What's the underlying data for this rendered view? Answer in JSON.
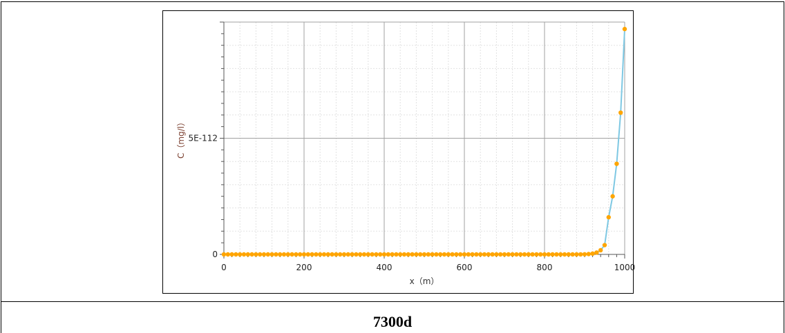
{
  "caption": "7300d",
  "chart_data": {
    "type": "line",
    "xlabel": "x（m）",
    "ylabel": "C（mg/l）",
    "xlim": [
      0,
      1000
    ],
    "ylim": [
      0,
      1e-111
    ],
    "x_ticks": [
      "0",
      "200",
      "400",
      "600",
      "800",
      "1000"
    ],
    "y_ticks": [
      "0",
      "5E-112"
    ],
    "grid": true,
    "series": [
      {
        "line_color": "#7ec8e3",
        "marker_color": "#ffa500",
        "x": [
          0,
          10,
          20,
          30,
          40,
          50,
          60,
          70,
          80,
          90,
          100,
          110,
          120,
          130,
          140,
          150,
          160,
          170,
          180,
          190,
          200,
          210,
          220,
          230,
          240,
          250,
          260,
          270,
          280,
          290,
          300,
          310,
          320,
          330,
          340,
          350,
          360,
          370,
          380,
          390,
          400,
          410,
          420,
          430,
          440,
          450,
          460,
          470,
          480,
          490,
          500,
          510,
          520,
          530,
          540,
          550,
          560,
          570,
          580,
          590,
          600,
          610,
          620,
          630,
          640,
          650,
          660,
          670,
          680,
          690,
          700,
          710,
          720,
          730,
          740,
          750,
          760,
          770,
          780,
          790,
          800,
          810,
          820,
          830,
          840,
          850,
          860,
          870,
          880,
          890,
          900,
          910,
          920,
          930,
          940,
          950,
          960,
          970,
          980,
          990,
          1000
        ],
        "y": [
          0,
          0,
          0,
          0,
          0,
          0,
          0,
          0,
          0,
          0,
          0,
          0,
          0,
          0,
          0,
          0,
          0,
          0,
          0,
          0,
          0,
          0,
          0,
          0,
          0,
          0,
          0,
          0,
          0,
          0,
          0,
          0,
          0,
          0,
          0,
          0,
          0,
          0,
          0,
          0,
          0,
          0,
          0,
          0,
          0,
          0,
          0,
          0,
          0,
          0,
          0,
          0,
          0,
          0,
          0,
          0,
          0,
          0,
          0,
          0,
          0,
          0,
          0,
          0,
          0,
          0,
          0,
          0,
          0,
          0,
          0,
          0,
          0,
          0,
          0,
          0,
          0,
          0,
          0,
          0,
          0,
          0,
          0,
          0,
          0,
          0,
          0,
          0,
          0,
          2e-115,
          6e-115,
          1.5e-114,
          3.5e-114,
          8e-114,
          1.8e-113,
          4e-113,
          1.6e-112,
          2.5e-112,
          3.9e-112,
          6.1e-112,
          9.7e-112
        ]
      }
    ]
  }
}
